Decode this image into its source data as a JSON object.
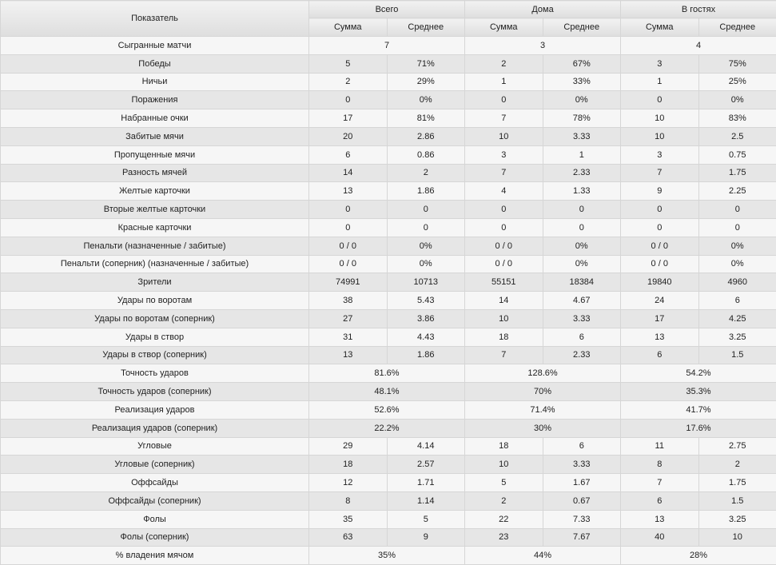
{
  "header": {
    "indicator": "Показатель",
    "groups": [
      "Всего",
      "Дома",
      "В гостях"
    ],
    "sub": [
      "Сумма",
      "Среднее"
    ]
  },
  "rows": [
    {
      "name": "Сыгранные матчи",
      "merged": [
        "7",
        "3",
        "4"
      ]
    },
    {
      "name": "Победы",
      "values": [
        "5",
        "71%",
        "2",
        "67%",
        "3",
        "75%"
      ]
    },
    {
      "name": "Ничьи",
      "values": [
        "2",
        "29%",
        "1",
        "33%",
        "1",
        "25%"
      ]
    },
    {
      "name": "Поражения",
      "values": [
        "0",
        "0%",
        "0",
        "0%",
        "0",
        "0%"
      ]
    },
    {
      "name": "Набранные очки",
      "values": [
        "17",
        "81%",
        "7",
        "78%",
        "10",
        "83%"
      ]
    },
    {
      "name": "Забитые мячи",
      "values": [
        "20",
        "2.86",
        "10",
        "3.33",
        "10",
        "2.5"
      ]
    },
    {
      "name": "Пропущенные мячи",
      "values": [
        "6",
        "0.86",
        "3",
        "1",
        "3",
        "0.75"
      ]
    },
    {
      "name": "Разность мячей",
      "values": [
        "14",
        "2",
        "7",
        "2.33",
        "7",
        "1.75"
      ]
    },
    {
      "name": "Желтые карточки",
      "values": [
        "13",
        "1.86",
        "4",
        "1.33",
        "9",
        "2.25"
      ]
    },
    {
      "name": "Вторые желтые карточки",
      "values": [
        "0",
        "0",
        "0",
        "0",
        "0",
        "0"
      ]
    },
    {
      "name": "Красные карточки",
      "values": [
        "0",
        "0",
        "0",
        "0",
        "0",
        "0"
      ]
    },
    {
      "name": "Пенальти (назначенные / забитые)",
      "values": [
        "0 / 0",
        "0%",
        "0 / 0",
        "0%",
        "0 / 0",
        "0%"
      ]
    },
    {
      "name": "Пенальти (соперник) (назначенные / забитые)",
      "values": [
        "0 / 0",
        "0%",
        "0 / 0",
        "0%",
        "0 / 0",
        "0%"
      ]
    },
    {
      "name": "Зрители",
      "values": [
        "74991",
        "10713",
        "55151",
        "18384",
        "19840",
        "4960"
      ]
    },
    {
      "name": "Удары по воротам",
      "values": [
        "38",
        "5.43",
        "14",
        "4.67",
        "24",
        "6"
      ]
    },
    {
      "name": "Удары по воротам (соперник)",
      "values": [
        "27",
        "3.86",
        "10",
        "3.33",
        "17",
        "4.25"
      ]
    },
    {
      "name": "Удары в створ",
      "values": [
        "31",
        "4.43",
        "18",
        "6",
        "13",
        "3.25"
      ]
    },
    {
      "name": "Удары в створ (соперник)",
      "values": [
        "13",
        "1.86",
        "7",
        "2.33",
        "6",
        "1.5"
      ]
    },
    {
      "name": "Точность ударов",
      "merged": [
        "81.6%",
        "128.6%",
        "54.2%"
      ]
    },
    {
      "name": "Точность ударов (соперник)",
      "merged": [
        "48.1%",
        "70%",
        "35.3%"
      ]
    },
    {
      "name": "Реализация ударов",
      "merged": [
        "52.6%",
        "71.4%",
        "41.7%"
      ]
    },
    {
      "name": "Реализация ударов (соперник)",
      "merged": [
        "22.2%",
        "30%",
        "17.6%"
      ]
    },
    {
      "name": "Угловые",
      "values": [
        "29",
        "4.14",
        "18",
        "6",
        "11",
        "2.75"
      ]
    },
    {
      "name": "Угловые (соперник)",
      "values": [
        "18",
        "2.57",
        "10",
        "3.33",
        "8",
        "2"
      ]
    },
    {
      "name": "Оффсайды",
      "values": [
        "12",
        "1.71",
        "5",
        "1.67",
        "7",
        "1.75"
      ]
    },
    {
      "name": "Оффсайды (соперник)",
      "values": [
        "8",
        "1.14",
        "2",
        "0.67",
        "6",
        "1.5"
      ]
    },
    {
      "name": "Фолы",
      "values": [
        "35",
        "5",
        "22",
        "7.33",
        "13",
        "3.25"
      ]
    },
    {
      "name": "Фолы (соперник)",
      "values": [
        "63",
        "9",
        "23",
        "7.67",
        "40",
        "10"
      ]
    },
    {
      "name": "% владения мячом",
      "merged": [
        "35%",
        "44%",
        "28%"
      ]
    }
  ]
}
